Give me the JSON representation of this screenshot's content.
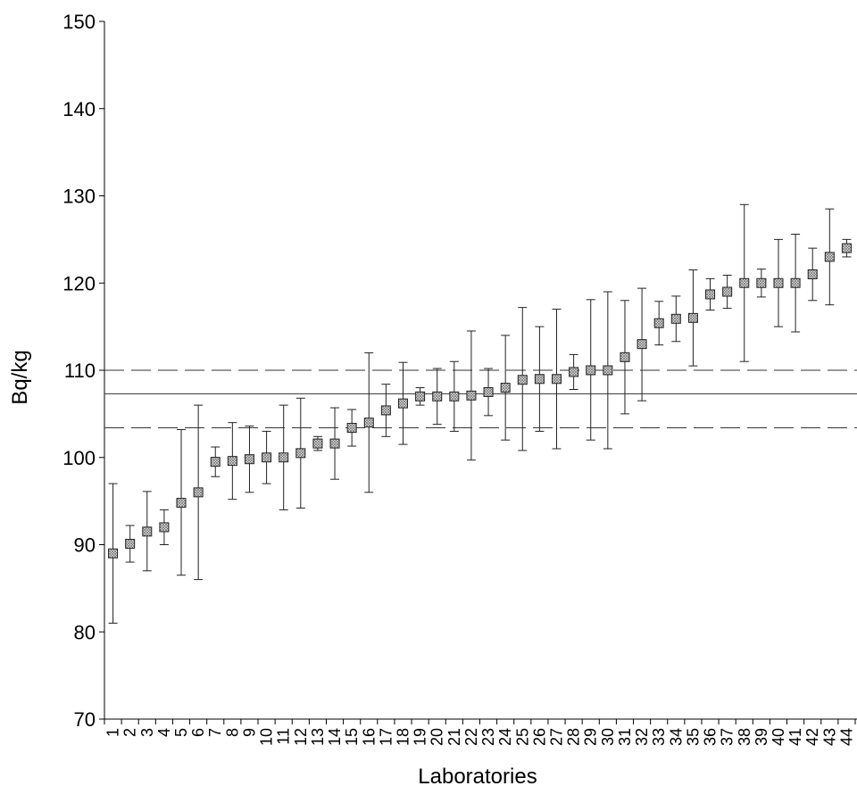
{
  "chart_data": {
    "type": "scatter",
    "title": "",
    "xlabel": "Laboratories",
    "ylabel": "Bq/kg",
    "ylim": [
      70,
      150
    ],
    "yticks": [
      "70",
      "80",
      "90",
      "100",
      "110",
      "120",
      "130",
      "140",
      "150"
    ],
    "grid": false,
    "marker": "crossed-square",
    "reference_lines": [
      {
        "style": "solid",
        "value": 107.3
      },
      {
        "style": "dashed",
        "value": 110.0
      },
      {
        "style": "dashed",
        "value": 103.4
      }
    ],
    "categories": [
      "1",
      "2",
      "3",
      "4",
      "5",
      "6",
      "7",
      "8",
      "9",
      "10",
      "11",
      "12",
      "13",
      "14",
      "15",
      "16",
      "17",
      "18",
      "19",
      "20",
      "21",
      "22",
      "23",
      "24",
      "25",
      "26",
      "27",
      "28",
      "29",
      "30",
      "31",
      "32",
      "33",
      "34",
      "35",
      "36",
      "37",
      "38",
      "39",
      "40",
      "41",
      "42",
      "43",
      "44"
    ],
    "values": [
      89.0,
      90.1,
      91.5,
      92.0,
      94.8,
      96.0,
      99.5,
      99.6,
      99.8,
      100.0,
      100.0,
      100.5,
      101.6,
      101.6,
      103.4,
      104.0,
      105.4,
      106.2,
      107.0,
      107.0,
      107.0,
      107.1,
      107.5,
      108.0,
      108.9,
      109.0,
      109.0,
      109.8,
      110.0,
      110.0,
      111.5,
      113.0,
      115.4,
      115.9,
      116.0,
      118.7,
      119.0,
      120.0,
      120.0,
      120.0,
      120.0,
      121.0,
      123.0,
      124.0
    ],
    "error_low": [
      81.0,
      88.0,
      87.0,
      90.0,
      86.5,
      86.0,
      97.8,
      95.2,
      96.0,
      97.0,
      94.0,
      94.2,
      100.8,
      97.5,
      101.3,
      96.0,
      102.4,
      101.5,
      106.0,
      103.8,
      103.0,
      99.7,
      104.8,
      102.0,
      100.8,
      103.0,
      101.0,
      107.8,
      102.0,
      101.0,
      105.0,
      106.5,
      112.9,
      113.3,
      110.5,
      116.9,
      117.1,
      111.0,
      118.4,
      115.0,
      114.4,
      118.0,
      117.5,
      123.0
    ],
    "error_high": [
      97.0,
      92.2,
      96.1,
      94.0,
      103.2,
      106.0,
      101.2,
      104.0,
      103.6,
      103.0,
      106.0,
      106.8,
      102.4,
      105.7,
      105.5,
      112.0,
      108.4,
      110.9,
      108.0,
      110.2,
      111.0,
      114.5,
      110.2,
      114.0,
      117.2,
      115.0,
      117.0,
      111.8,
      118.1,
      119.0,
      118.0,
      119.4,
      117.9,
      118.5,
      121.5,
      120.5,
      120.9,
      129.0,
      121.6,
      125.0,
      125.6,
      124.0,
      128.5,
      125.0
    ]
  }
}
